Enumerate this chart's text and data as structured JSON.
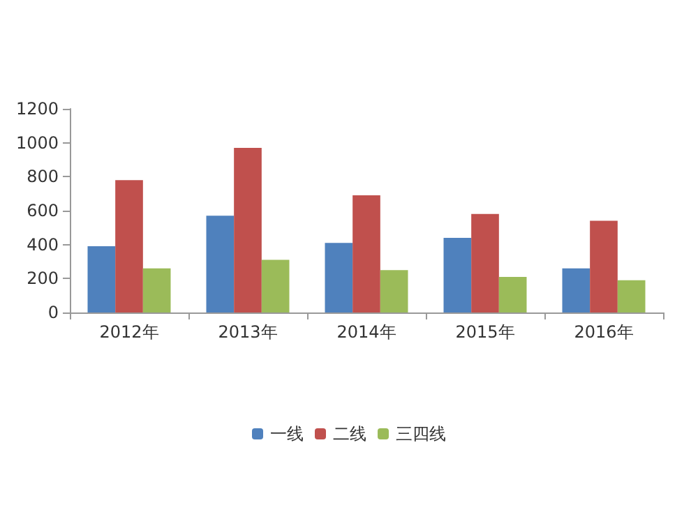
{
  "chart_data": {
    "type": "bar",
    "categories": [
      "2012年",
      "2013年",
      "2014年",
      "2015年",
      "2016年"
    ],
    "series": [
      {
        "name": "一线",
        "color": "#4f81bd",
        "values": [
          390,
          570,
          410,
          440,
          260
        ]
      },
      {
        "name": "二线",
        "color": "#c0504d",
        "values": [
          780,
          970,
          690,
          580,
          540
        ]
      },
      {
        "name": "三四线",
        "color": "#9bbb59",
        "values": [
          260,
          310,
          250,
          210,
          190
        ]
      }
    ],
    "ylim": [
      0,
      1200
    ],
    "yticks": [
      0,
      200,
      400,
      600,
      800,
      1000,
      1200
    ],
    "grid": false,
    "legend": "bottom"
  }
}
